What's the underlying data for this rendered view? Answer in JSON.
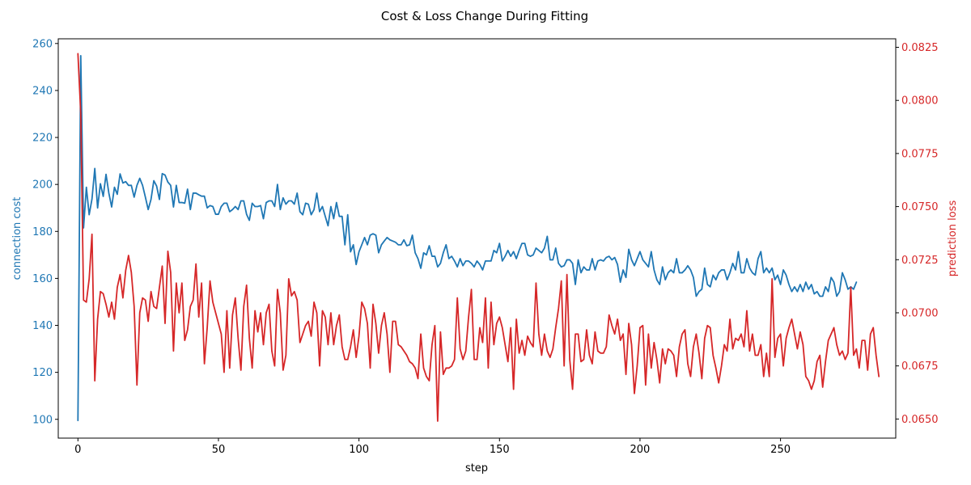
{
  "chart_data": {
    "type": "line",
    "title": "Cost & Loss Change During Fitting",
    "xlabel": "step",
    "xlim": [
      -7,
      291
    ],
    "xticks": [
      0,
      50,
      100,
      150,
      200,
      250
    ],
    "grid": false,
    "axes": {
      "left": {
        "label": "connection cost",
        "color": "#1f77b4",
        "ylim": [
          92,
          262
        ],
        "ticks": [
          100,
          120,
          140,
          160,
          180,
          200,
          220,
          240,
          260
        ],
        "tick_labels": [
          "100",
          "120",
          "140",
          "160",
          "180",
          "200",
          "220",
          "240",
          "260"
        ]
      },
      "right": {
        "label": "prediction loss",
        "color": "#d62728",
        "ylim": [
          0.0641,
          0.0829
        ],
        "ticks": [
          0.065,
          0.0675,
          0.07,
          0.0725,
          0.075,
          0.0775,
          0.08,
          0.0825
        ],
        "tick_labels": [
          "0.0650",
          "0.0675",
          "0.0700",
          "0.0725",
          "0.0750",
          "0.0775",
          "0.0800",
          "0.0825"
        ]
      }
    },
    "series": [
      {
        "axis": "left",
        "color": "#1f77b4",
        "x_start": 0,
        "x_step": 1,
        "values": [
          99.5,
          254.8,
          181.5,
          198.8,
          187.1,
          193.8,
          206.8,
          190.0,
          200.3,
          194.9,
          204.3,
          196.3,
          190.4,
          198.8,
          195.8,
          204.5,
          200.6,
          201.2,
          199.6,
          199.6,
          194.6,
          199.6,
          202.6,
          199.6,
          194.6,
          189.3,
          193.6,
          201.6,
          199.3,
          193.6,
          204.6,
          204.0,
          201.0,
          199.6,
          190.4,
          199.6,
          192.3,
          192.3,
          192.0,
          198.0,
          189.3,
          196.3,
          196.3,
          195.6,
          195.0,
          195.0,
          190.0,
          191.0,
          190.6,
          187.3,
          187.3,
          190.6,
          192.0,
          192.0,
          188.4,
          189.3,
          190.6,
          189.3,
          193.0,
          193.0,
          187.3,
          184.7,
          192.0,
          190.6,
          190.6,
          191.0,
          185.4,
          192.3,
          193.0,
          193.0,
          190.6,
          200.0,
          189.3,
          194.3,
          191.6,
          193.0,
          193.0,
          191.6,
          196.3,
          188.4,
          187.1,
          192.0,
          191.6,
          187.1,
          189.3,
          196.3,
          188.4,
          190.6,
          186.4,
          182.4,
          190.6,
          185.4,
          192.3,
          186.4,
          186.4,
          174.3,
          187.1,
          171.3,
          174.3,
          165.9,
          171.3,
          174.3,
          177.4,
          174.3,
          178.4,
          179.0,
          178.4,
          170.9,
          174.3,
          175.9,
          177.4,
          176.4,
          175.9,
          175.4,
          174.3,
          174.3,
          176.4,
          173.9,
          174.3,
          178.4,
          170.9,
          168.4,
          164.3,
          170.9,
          170.0,
          173.9,
          169.4,
          169.4,
          164.9,
          166.4,
          170.9,
          174.3,
          168.4,
          169.4,
          167.4,
          164.9,
          168.4,
          165.4,
          167.4,
          167.4,
          166.4,
          164.9,
          167.4,
          165.9,
          163.6,
          167.4,
          167.4,
          167.4,
          171.9,
          170.9,
          174.9,
          167.4,
          169.4,
          171.9,
          169.4,
          171.4,
          168.4,
          171.9,
          174.9,
          174.9,
          170.0,
          169.4,
          170.0,
          172.9,
          171.9,
          170.9,
          172.9,
          177.9,
          167.9,
          167.9,
          172.9,
          166.4,
          164.9,
          165.4,
          167.9,
          167.9,
          166.4,
          157.4,
          167.9,
          162.4,
          164.9,
          163.6,
          163.6,
          168.4,
          163.6,
          167.4,
          167.9,
          167.4,
          168.9,
          169.4,
          167.9,
          168.9,
          165.9,
          158.4,
          163.6,
          160.4,
          172.4,
          167.9,
          165.4,
          168.4,
          171.4,
          167.9,
          166.4,
          164.9,
          171.4,
          163.6,
          159.4,
          157.4,
          164.9,
          159.4,
          162.4,
          163.6,
          162.4,
          168.4,
          162.4,
          162.4,
          163.6,
          165.4,
          163.6,
          160.4,
          152.4,
          154.4,
          155.4,
          164.4,
          157.4,
          156.4,
          161.4,
          159.4,
          162.4,
          163.6,
          163.6,
          159.4,
          162.4,
          166.4,
          163.6,
          171.4,
          162.4,
          162.4,
          168.4,
          164.4,
          162.4,
          161.4,
          168.4,
          171.4,
          162.4,
          164.4,
          162.4,
          164.4,
          159.4,
          161.4,
          157.4,
          163.6,
          161.4,
          157.4,
          154.4,
          156.4,
          154.4,
          157.4,
          154.4,
          158.4,
          155.4,
          157.4,
          153.4,
          154.4,
          152.4,
          152.4,
          156.4,
          154.4,
          160.4,
          158.4,
          152.4,
          154.4,
          162.4,
          159.4,
          155.4,
          156.4,
          155.4,
          158.4
        ]
      },
      {
        "axis": "right",
        "color": "#d62728",
        "x_start": 0,
        "x_step": 1,
        "values": [
          0.0822,
          0.0794,
          0.0706,
          0.0705,
          0.0716,
          0.0737,
          0.0668,
          0.0697,
          0.071,
          0.0709,
          0.0704,
          0.0698,
          0.0705,
          0.0697,
          0.0712,
          0.0718,
          0.0707,
          0.072,
          0.0727,
          0.0719,
          0.0703,
          0.0666,
          0.07,
          0.0707,
          0.0706,
          0.0696,
          0.071,
          0.0703,
          0.0702,
          0.0712,
          0.0722,
          0.0695,
          0.0729,
          0.0719,
          0.0682,
          0.0714,
          0.07,
          0.0714,
          0.0687,
          0.0692,
          0.0703,
          0.0706,
          0.0723,
          0.0698,
          0.0714,
          0.0676,
          0.0693,
          0.0715,
          0.0705,
          0.07,
          0.0695,
          0.069,
          0.0672,
          0.0701,
          0.0674,
          0.0699,
          0.0707,
          0.0688,
          0.0673,
          0.0703,
          0.0713,
          0.0688,
          0.0674,
          0.0701,
          0.0691,
          0.07,
          0.0685,
          0.07,
          0.0704,
          0.0682,
          0.0675,
          0.0711,
          0.07,
          0.0673,
          0.068,
          0.0716,
          0.0708,
          0.071,
          0.0706,
          0.0686,
          0.069,
          0.0694,
          0.0696,
          0.0689,
          0.0705,
          0.07,
          0.0675,
          0.0701,
          0.0698,
          0.0685,
          0.07,
          0.0685,
          0.0694,
          0.0699,
          0.0684,
          0.0678,
          0.0678,
          0.0684,
          0.0692,
          0.0679,
          0.0689,
          0.0705,
          0.0702,
          0.0695,
          0.0674,
          0.0704,
          0.0695,
          0.0681,
          0.0694,
          0.07,
          0.069,
          0.0672,
          0.0696,
          0.0696,
          0.0685,
          0.0684,
          0.0682,
          0.068,
          0.0677,
          0.0676,
          0.0674,
          0.0669,
          0.069,
          0.0674,
          0.067,
          0.0668,
          0.0685,
          0.0694,
          0.0649,
          0.0691,
          0.0671,
          0.0674,
          0.0674,
          0.0675,
          0.0678,
          0.0707,
          0.0683,
          0.0678,
          0.0682,
          0.0698,
          0.0711,
          0.0678,
          0.0678,
          0.0693,
          0.0686,
          0.0707,
          0.0674,
          0.0705,
          0.0685,
          0.0695,
          0.0698,
          0.0693,
          0.0685,
          0.0677,
          0.0693,
          0.0664,
          0.0697,
          0.0681,
          0.0687,
          0.068,
          0.0689,
          0.0686,
          0.0684,
          0.0714,
          0.069,
          0.068,
          0.069,
          0.0682,
          0.0679,
          0.0683,
          0.0693,
          0.0702,
          0.0715,
          0.0675,
          0.0718,
          0.0678,
          0.0664,
          0.069,
          0.069,
          0.0677,
          0.0678,
          0.0692,
          0.068,
          0.0676,
          0.0691,
          0.0682,
          0.0681,
          0.0681,
          0.0684,
          0.0699,
          0.0694,
          0.069,
          0.0697,
          0.0687,
          0.069,
          0.0671,
          0.0695,
          0.0685,
          0.0662,
          0.0675,
          0.0693,
          0.0694,
          0.0666,
          0.069,
          0.0674,
          0.0686,
          0.0678,
          0.0667,
          0.0683,
          0.0676,
          0.0683,
          0.0682,
          0.068,
          0.067,
          0.0684,
          0.069,
          0.0692,
          0.0676,
          0.067,
          0.0684,
          0.069,
          0.0681,
          0.0669,
          0.0688,
          0.0694,
          0.0693,
          0.068,
          0.0674,
          0.0667,
          0.0675,
          0.0685,
          0.0682,
          0.0697,
          0.0683,
          0.0688,
          0.0687,
          0.069,
          0.0684,
          0.0701,
          0.0682,
          0.069,
          0.068,
          0.068,
          0.0685,
          0.067,
          0.0681,
          0.067,
          0.0716,
          0.0679,
          0.0688,
          0.069,
          0.0675,
          0.0688,
          0.0693,
          0.0697,
          0.069,
          0.0683,
          0.0691,
          0.0685,
          0.067,
          0.0668,
          0.0664,
          0.0668,
          0.0677,
          0.068,
          0.0665,
          0.0677,
          0.0687,
          0.069,
          0.0693,
          0.0685,
          0.068,
          0.0682,
          0.0678,
          0.0681,
          0.0712,
          0.068,
          0.0683,
          0.0674,
          0.0687,
          0.0687,
          0.0673,
          0.069,
          0.0693,
          0.068,
          0.067
        ]
      }
    ]
  }
}
